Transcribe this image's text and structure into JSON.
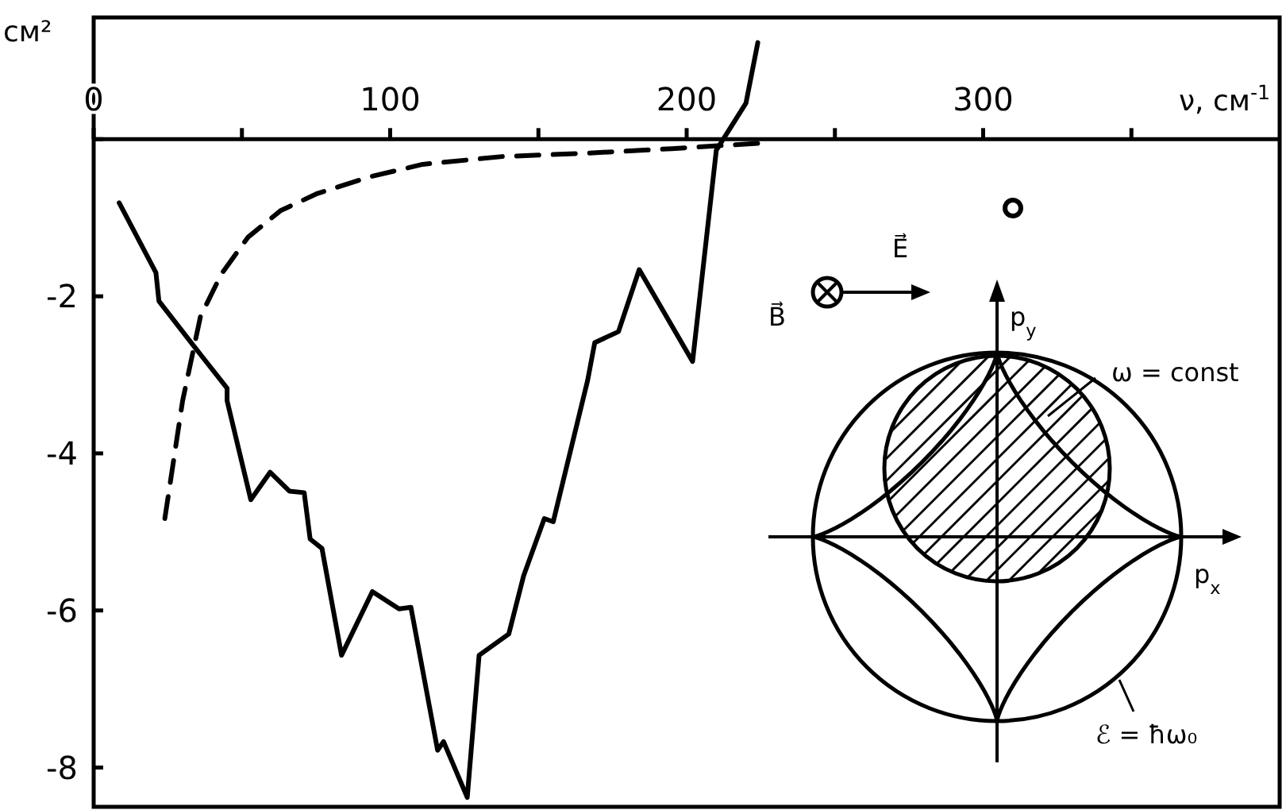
{
  "chart_data": {
    "type": "line",
    "xlabel": "ν, см$^{-1}$",
    "ylabel": "см²",
    "xlim": [
      0,
      400
    ],
    "ylim": [
      -8.5,
      1.55
    ],
    "xticks": [
      0,
      {
        "value": 50,
        "label": null
      },
      100,
      {
        "value": 150,
        "label": null
      },
      200,
      {
        "value": 250,
        "label": null
      },
      300,
      {
        "value": 350,
        "label": null
      }
    ],
    "yticks": [
      {
        "value": 0,
        "label": null
      },
      -2,
      -4,
      -6,
      -8
    ],
    "grid": false,
    "series": [
      {
        "color": "#000000",
        "line_style": "solid",
        "x": [
          8.6,
          21,
          22,
          33.7,
          45,
          45,
          53,
          59.5,
          66,
          71,
          73,
          77,
          83.6,
          94,
          103,
          107,
          116,
          118,
          126,
          130,
          140,
          145,
          152,
          155,
          166.6,
          169,
          177,
          184,
          202,
          210,
          220,
          224
        ],
        "values": [
          -0.81,
          -1.7,
          -2.06,
          -2.63,
          -3.17,
          -3.33,
          -4.59,
          -4.24,
          -4.48,
          -4.5,
          -5.09,
          -5.21,
          -6.57,
          -5.76,
          -5.98,
          -5.96,
          -7.78,
          -7.67,
          -8.38,
          -6.57,
          -6.3,
          -5.56,
          -4.83,
          -4.87,
          -3.07,
          -2.59,
          -2.45,
          -1.66,
          -2.83,
          -0.14,
          0.46,
          1.23
        ]
      },
      {
        "color": "#000000",
        "line_style": "dashed",
        "x": [
          24,
          30,
          36,
          43,
          52,
          63,
          75.5,
          93,
          111,
          138,
          165,
          195,
          225
        ],
        "values": [
          -4.83,
          -3.33,
          -2.26,
          -1.72,
          -1.25,
          -0.91,
          -0.69,
          -0.48,
          -0.32,
          -0.22,
          -0.18,
          -0.12,
          -0.05
        ]
      }
    ],
    "annotations": [
      "B⃗",
      "E⃗",
      "p$_{y}$",
      "ω = const",
      "p$_{x}$",
      "ℰ = ħω₀"
    ]
  }
}
